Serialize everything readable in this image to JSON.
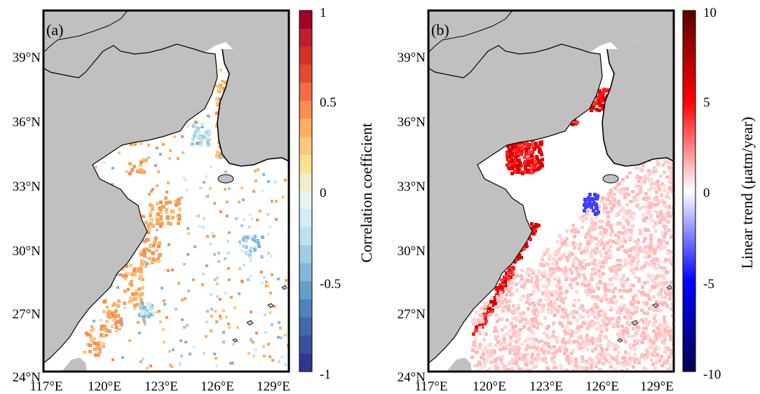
{
  "panels": [
    {
      "id": "a",
      "label": "(a)",
      "lat_ticks": [
        "39°N",
        "36°N",
        "33°N",
        "30°N",
        "27°N",
        "24°N"
      ],
      "lon_ticks": [
        "117°E",
        "120°E",
        "123°E",
        "126°E",
        "129°E"
      ],
      "colorbar": {
        "title": "Correlation coefficient",
        "ticks": [
          "1",
          "0.5",
          "0",
          "-0.5",
          "-1"
        ],
        "range": [
          -1,
          1
        ],
        "colors": [
          "#313695",
          "#4575b4",
          "#74add1",
          "#abd9e9",
          "#e0f3f8",
          "#ffffbf",
          "#fee090",
          "#fdae61",
          "#f46d43",
          "#d73027",
          "#a50026"
        ]
      }
    },
    {
      "id": "b",
      "label": "(b)",
      "lat_ticks": [
        "39°N",
        "36°N",
        "33°N",
        "30°N",
        "27°N",
        "24°N"
      ],
      "lon_ticks": [
        "117°E",
        "120°E",
        "123°E",
        "126°E",
        "129°E"
      ],
      "colorbar": {
        "title": "Linear trend (μatm/year)",
        "ticks": [
          "10",
          "5",
          "0",
          "-5",
          "-10"
        ],
        "range": [
          -10,
          10
        ],
        "colors": [
          "#00004d",
          "#0000ff",
          "#ffffff",
          "#ff0000",
          "#5a0000"
        ]
      }
    }
  ],
  "map_extent": {
    "lon": [
      117,
      130
    ],
    "lat": [
      24,
      41
    ]
  },
  "colors": {
    "land": "#c0c0c0",
    "sea": "#ffffff",
    "coast": "#000000"
  }
}
